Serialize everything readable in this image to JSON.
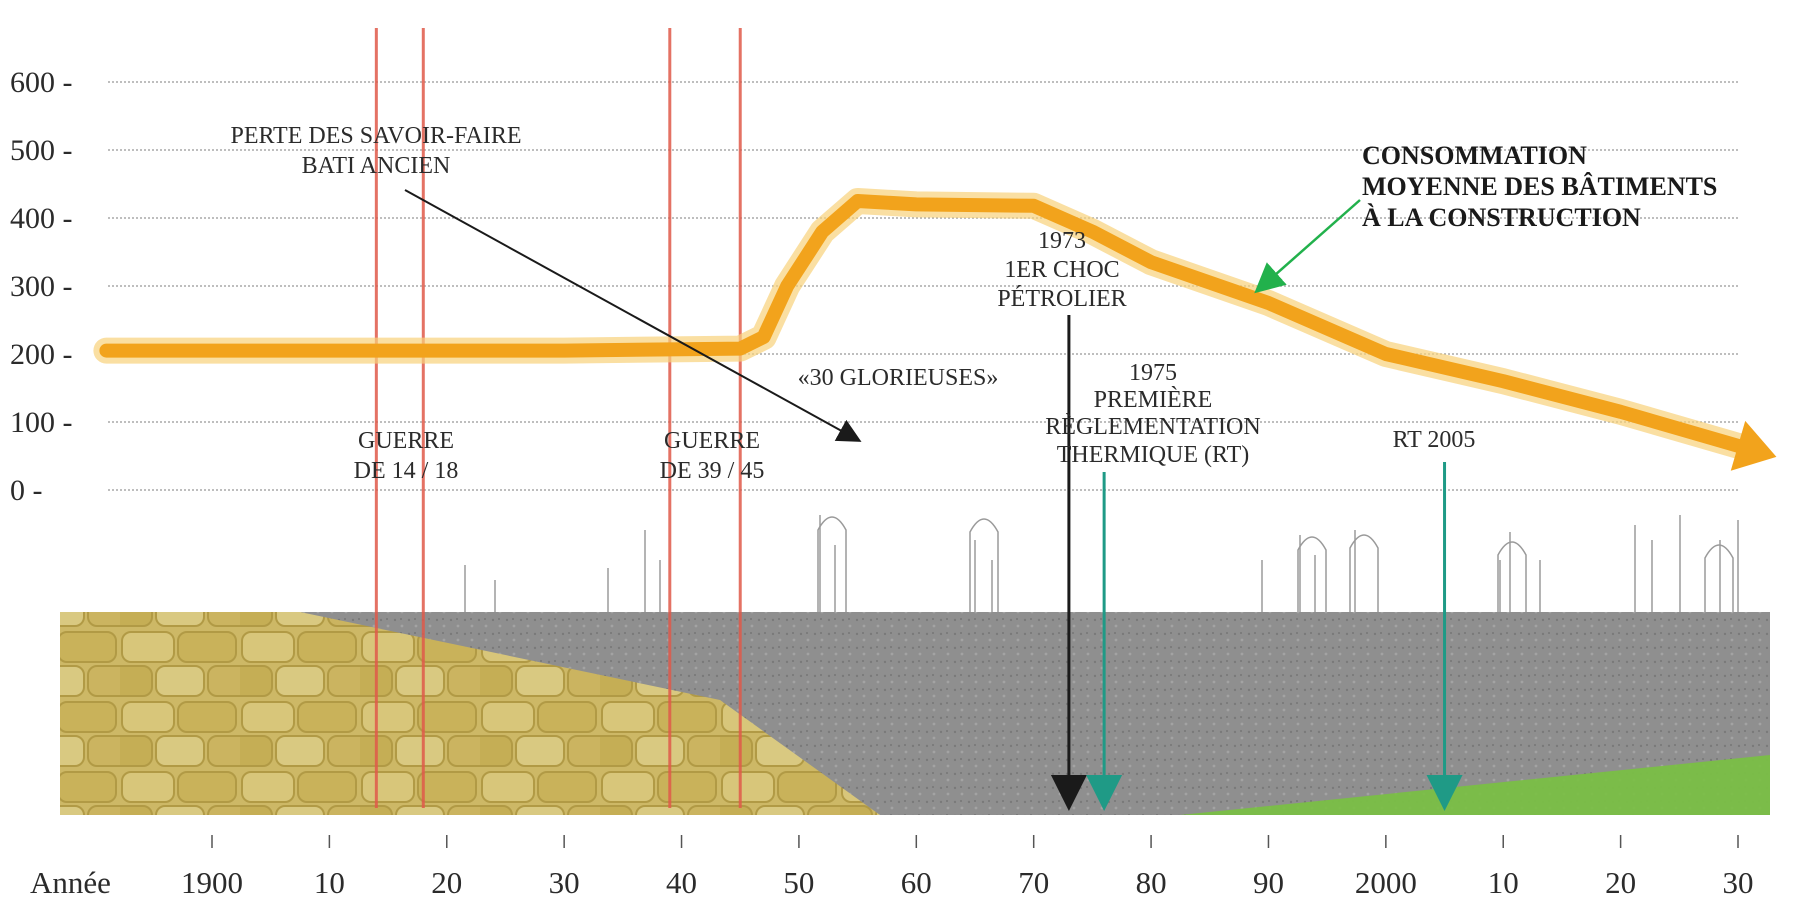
{
  "chart_data": {
    "type": "line",
    "x_axis_title": "Année",
    "x_tick_labels": [
      "1900",
      "10",
      "20",
      "30",
      "40",
      "50",
      "60",
      "70",
      "80",
      "90",
      "2000",
      "10",
      "20",
      "30"
    ],
    "y_tick_labels": [
      "600",
      "500",
      "400",
      "300",
      "200",
      "100",
      "0"
    ],
    "ylim": [
      0,
      600
    ],
    "xlim": [
      1891,
      2033
    ],
    "grid": "horizontal",
    "series": [
      {
        "label": "CONSOMMATION MOYENNE DES BÂTIMENTS À LA CONSTRUCTION",
        "color": "#f2a31c",
        "x": [
          1891,
          1915,
          1930,
          1945,
          1947,
          1949,
          1952,
          1955,
          1960,
          1970,
          1975,
          1980,
          1990,
          2000,
          2010,
          2020,
          2030
        ],
        "y": [
          205,
          205,
          205,
          208,
          225,
          300,
          380,
          425,
          420,
          418,
          380,
          335,
          275,
          200,
          160,
          115,
          65
        ]
      }
    ],
    "event_lines": [
      {
        "year": 1914,
        "color": "#e05a4a"
      },
      {
        "year": 1918,
        "color": "#e05a4a"
      },
      {
        "year": 1939,
        "color": "#e05a4a"
      },
      {
        "year": 1945,
        "color": "#e05a4a"
      }
    ],
    "annotations": [
      {
        "id": "war1",
        "lines": [
          "GUERRE",
          "DE 14 / 18"
        ]
      },
      {
        "id": "war2",
        "lines": [
          "GUERRE",
          "DE 39 / 45"
        ]
      },
      {
        "id": "savoir",
        "lines": [
          "PERTE DES SAVOIR-FAIRE",
          "BATI ANCIEN"
        ]
      },
      {
        "id": "glorieuses",
        "lines": [
          "«30 GLORIEUSES»"
        ]
      },
      {
        "id": "choc",
        "lines": [
          "1973",
          "1ER CHOC",
          "PÉTROLIER"
        ],
        "year": 1973
      },
      {
        "id": "rt",
        "lines": [
          "1975",
          "PREMIÈRE",
          "RÈGLEMENTATION",
          "THERMIQUE (RT)"
        ],
        "year": 1976
      },
      {
        "id": "rt2005",
        "lines": [
          "RT 2005"
        ],
        "year": 2005
      },
      {
        "id": "conso",
        "lines": [
          "CONSOMMATION",
          "MOYENNE DES BÂTIMENTS",
          "À LA CONSTRUCTION"
        ]
      }
    ],
    "colors": {
      "consumption": "#f2a31c",
      "war_lines": "#e05a4a",
      "choc_arrow": "#1a1a1a",
      "rt_arrows": "#1f9a86",
      "legend_arrow": "#22b14c",
      "stone": "#c9b45a",
      "concrete": "#8a8a8a",
      "insulation": "#7ac043"
    }
  }
}
